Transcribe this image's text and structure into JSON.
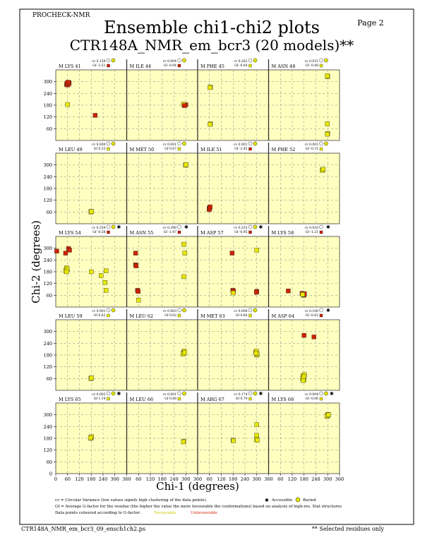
{
  "header": {
    "program": "PROCHECK-NMR",
    "page": "Page  2",
    "title": "Ensemble chi1-chi2 plots",
    "subtitle": "CTR148A_NMR_em_bcr3 (20 models)**"
  },
  "footer": {
    "filename": "CTR148A_NMR_em_bcr3_09_ensch1ch2.ps",
    "selected_note": "** Selected residues only"
  },
  "legend": {
    "cv_text": "cv = Circular Variance (low values signify high clustering of the data points).",
    "accessible": "Accessible",
    "buried": "Buried",
    "gf_text": "Gf = Average G-factor for the residue (the higher the value the more favourable the conformations) based on analysis of high-res. Xtal structures",
    "coloured_text": "Data points coloured according to G-factor:",
    "favourable": "Favourable",
    "unfavourable": "Unfavourable",
    "favourable_color": "#e6e600",
    "unfavourable_color": "#cc2200"
  },
  "colors": {
    "panel_bg": "#ffffc0",
    "yellow_point": "#e6e600",
    "red_point": "#cc2200",
    "grid": "#888888"
  },
  "chart_data": {
    "type": "scatter",
    "xlabel": "Chi-1 (degrees)",
    "ylabel": "Chi-2 (degrees)",
    "xlim": [
      0,
      360
    ],
    "ylim": [
      0,
      360
    ],
    "xticks": [
      0,
      60,
      120,
      180,
      240,
      300,
      360
    ],
    "yticks": [
      60,
      120,
      180,
      240,
      300
    ],
    "grid": true,
    "rows": [
      [
        {
          "label": "M LYS 41",
          "cv": "cv 0.158",
          "gf": "Gf -2.51",
          "icon": "buried",
          "points": [
            [
              60,
              290,
              "r"
            ],
            [
              62,
              292,
              "r"
            ],
            [
              58,
              288,
              "r"
            ],
            [
              65,
              295,
              "r"
            ],
            [
              55,
              285,
              "r"
            ],
            [
              63,
              290,
              "r"
            ],
            [
              68,
              294,
              "r"
            ],
            [
              60,
              283,
              "r"
            ],
            [
              57,
              292,
              "r"
            ],
            [
              66,
              288,
              "r"
            ],
            [
              62,
              297,
              "r"
            ],
            [
              60,
              183,
              "y"
            ],
            [
              200,
              128,
              "r"
            ]
          ]
        },
        {
          "label": "M ILE 44",
          "cv": "cv 0.004",
          "gf": "Gf -0.94",
          "icon": "buried",
          "points": [
            [
              290,
              183,
              "r"
            ],
            [
              295,
              180,
              "r"
            ],
            [
              300,
              182,
              "r"
            ],
            [
              288,
              185,
              "y"
            ],
            [
              293,
              178,
              "r"
            ]
          ]
        },
        {
          "label": "M PHE 45",
          "cv": "cv 0.262",
          "gf": "Gf -0.64",
          "icon": "buried",
          "points": [
            [
              65,
              272,
              "y"
            ],
            [
              62,
              270,
              "y"
            ],
            [
              65,
              85,
              "y"
            ],
            [
              63,
              82,
              "y"
            ]
          ]
        },
        {
          "label": "M ASN 48",
          "cv": "cv 0.031",
          "gf": "Gf -0.48",
          "icon": "buried",
          "points": [
            [
              300,
              325,
              "y"
            ],
            [
              298,
              330,
              "y"
            ],
            [
              298,
              85,
              "y"
            ],
            [
              300,
              35,
              "y"
            ],
            [
              298,
              32,
              "y"
            ]
          ]
        }
      ],
      [
        {
          "label": "M LEU 49",
          "cv": "cv 0.000",
          "gf": "Gf 0.33",
          "icon": "buried",
          "points": [
            [
              180,
              63,
              "y"
            ],
            [
              178,
              60,
              "y"
            ],
            [
              182,
              62,
              "y"
            ]
          ]
        },
        {
          "label": "M MET 50",
          "cv": "cv 0.001",
          "gf": "Gf 0.67",
          "icon": "buried",
          "points": [
            [
              300,
              300,
              "y"
            ],
            [
              298,
              298,
              "y"
            ],
            [
              302,
              302,
              "y"
            ]
          ]
        },
        {
          "label": "M ILE 51",
          "cv": "cv 0.001",
          "gf": "Gf -2.45",
          "icon": "buried",
          "points": [
            [
              60,
              80,
              "r"
            ],
            [
              58,
              76,
              "r"
            ],
            [
              62,
              82,
              "r"
            ],
            [
              59,
              72,
              "r"
            ],
            [
              63,
              86,
              "r"
            ]
          ]
        },
        {
          "label": "M PHE 52",
          "cv": "cv 0.001",
          "gf": "Gf -0.31",
          "icon": "buried",
          "points": [
            [
              275,
              275,
              "y"
            ],
            [
              272,
              272,
              "y"
            ],
            [
              277,
              278,
              "y"
            ]
          ]
        }
      ],
      [
        {
          "label": "M LYS 54",
          "cv": "cv 0.359",
          "gf": "Gf -0.58",
          "icon": "both",
          "points": [
            [
              5,
              285,
              "r"
            ],
            [
              50,
              275,
              "r"
            ],
            [
              65,
              298,
              "r"
            ],
            [
              70,
              290,
              "r"
            ],
            [
              55,
              200,
              "y"
            ],
            [
              50,
              185,
              "y"
            ],
            [
              58,
              192,
              "y"
            ],
            [
              55,
              180,
              "y"
            ],
            [
              180,
              180,
              "y"
            ],
            [
              230,
              160,
              "y"
            ],
            [
              250,
              125,
              "y"
            ],
            [
              255,
              185,
              "y"
            ],
            [
              255,
              85,
              "y"
            ]
          ]
        },
        {
          "label": "M ASN 55",
          "cv": "cv 0.398",
          "gf": "Gf -1.47",
          "icon": "accessible",
          "points": [
            [
              45,
              275,
              "r"
            ],
            [
              45,
              215,
              "r"
            ],
            [
              48,
              210,
              "r"
            ],
            [
              55,
              85,
              "r"
            ],
            [
              58,
              80,
              "r"
            ],
            [
              60,
              35,
              "y"
            ],
            [
              290,
              320,
              "y"
            ],
            [
              295,
              275,
              "y"
            ],
            [
              290,
              155,
              "y"
            ]
          ]
        },
        {
          "label": "M ASP 57",
          "cv": "cv 0.335",
          "gf": "Gf -0.95",
          "icon": "both",
          "points": [
            [
              180,
              80,
              "r"
            ],
            [
              178,
              85,
              "r"
            ],
            [
              182,
              82,
              "r"
            ],
            [
              180,
              72,
              "y"
            ],
            [
              175,
              275,
              "r"
            ],
            [
              300,
              290,
              "y"
            ],
            [
              300,
              80,
              "r"
            ],
            [
              298,
              75,
              "r"
            ]
          ]
        },
        {
          "label": "M LYS 58",
          "cv": "cv 0.016",
          "gf": "Gf -1.21",
          "icon": "accessible",
          "points": [
            [
              100,
              82,
              "r"
            ],
            [
              170,
              70,
              "r"
            ],
            [
              175,
              65,
              "r"
            ],
            [
              178,
              60,
              "r"
            ],
            [
              180,
              62,
              "r"
            ],
            [
              182,
              68,
              "r"
            ],
            [
              173,
              64,
              "y"
            ]
          ]
        }
      ],
      [
        {
          "label": "M LEU 59",
          "cv": "cv 0.001",
          "gf": "Gf 0.62",
          "icon": "buried",
          "points": [
            [
              180,
              62,
              "y"
            ],
            [
              178,
              60,
              "y"
            ],
            [
              182,
              64,
              "y"
            ]
          ]
        },
        {
          "label": "M LEU 62",
          "cv": "cv 0.003",
          "gf": "Gf 0.62",
          "icon": "buried",
          "points": [
            [
              290,
              195,
              "y"
            ],
            [
              288,
              190,
              "y"
            ],
            [
              292,
              200,
              "y"
            ],
            [
              286,
              185,
              "y"
            ],
            [
              294,
              192,
              "y"
            ]
          ]
        },
        {
          "label": "M MET 63",
          "cv": "cv 0.008",
          "gf": "Gf 0.60",
          "icon": "buried",
          "points": [
            [
              295,
              195,
              "y"
            ],
            [
              298,
              200,
              "y"
            ],
            [
              300,
              180,
              "y"
            ],
            [
              302,
              185,
              "y"
            ],
            [
              296,
              190,
              "y"
            ]
          ]
        },
        {
          "label": "M ASP 64",
          "cv": "cv 0.106",
          "gf": "Gf -0.62",
          "icon": "accessible",
          "points": [
            [
              180,
              280,
              "r"
            ],
            [
              230,
              272,
              "r"
            ],
            [
              175,
              75,
              "y"
            ],
            [
              178,
              65,
              "y"
            ],
            [
              180,
              55,
              "y"
            ],
            [
              172,
              60,
              "y"
            ],
            [
              182,
              80,
              "y"
            ],
            [
              176,
              50,
              "y"
            ],
            [
              179,
              70,
              "y"
            ]
          ]
        }
      ],
      [
        {
          "label": "M LYS 65",
          "cv": "cv 0.002",
          "gf": "Gf 1.14",
          "icon": "both",
          "points": [
            [
              180,
              185,
              "y"
            ],
            [
              178,
              180,
              "y"
            ],
            [
              182,
              188,
              "y"
            ],
            [
              176,
              183,
              "y"
            ]
          ]
        },
        {
          "label": "M LEU 66",
          "cv": "cv 0.001",
          "gf": "Gf 0.68",
          "icon": "buried",
          "points": [
            [
              290,
              165,
              "y"
            ],
            [
              288,
              162,
              "y"
            ]
          ]
        },
        {
          "label": "M ARG 67",
          "cv": "cv 0.174",
          "gf": "Gf 0.79",
          "icon": "both",
          "points": [
            [
              180,
              170,
              "y"
            ],
            [
              182,
              168,
              "y"
            ],
            [
              300,
              250,
              "y"
            ],
            [
              300,
              195,
              "y"
            ],
            [
              298,
              175,
              "y"
            ],
            [
              302,
              170,
              "y"
            ]
          ]
        },
        {
          "label": "M LYS 68",
          "cv": "cv 0.004",
          "gf": "Gf -0.06",
          "icon": "both",
          "points": [
            [
              300,
              298,
              "y"
            ],
            [
              298,
              292,
              "y"
            ],
            [
              302,
              302,
              "y"
            ],
            [
              296,
              295,
              "y"
            ],
            [
              304,
              300,
              "y"
            ]
          ]
        }
      ]
    ]
  }
}
